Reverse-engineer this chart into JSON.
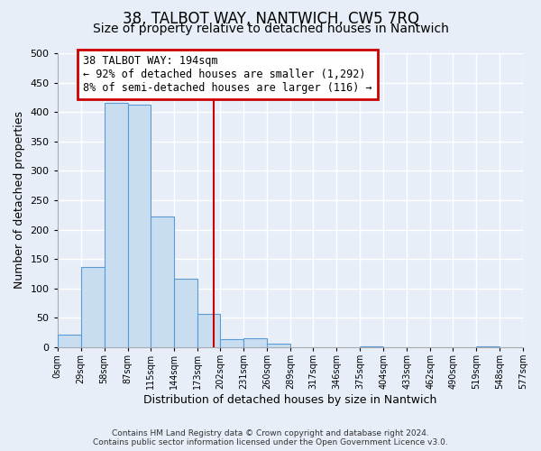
{
  "title": "38, TALBOT WAY, NANTWICH, CW5 7RQ",
  "subtitle": "Size of property relative to detached houses in Nantwich",
  "xlabel": "Distribution of detached houses by size in Nantwich",
  "ylabel": "Number of detached properties",
  "bin_edges": [
    0,
    29,
    58,
    87,
    115,
    144,
    173,
    202,
    231,
    260,
    289,
    317,
    346,
    375,
    404,
    433,
    462,
    490,
    519,
    548,
    577
  ],
  "bin_counts": [
    22,
    137,
    415,
    413,
    222,
    116,
    57,
    14,
    15,
    6,
    0,
    0,
    0,
    2,
    0,
    0,
    0,
    0,
    1,
    0
  ],
  "bar_color": "#c8ddf0",
  "bar_edge_color": "#5b9bd5",
  "property_line_x": 194,
  "annotation_title": "38 TALBOT WAY: 194sqm",
  "annotation_line1": "← 92% of detached houses are smaller (1,292)",
  "annotation_line2": "8% of semi-detached houses are larger (116) →",
  "annotation_box_color": "#ffffff",
  "annotation_box_edge_color": "#cc0000",
  "vline_color": "#cc0000",
  "ylim": [
    0,
    500
  ],
  "xlim": [
    0,
    577
  ],
  "tick_labels": [
    "0sqm",
    "29sqm",
    "58sqm",
    "87sqm",
    "115sqm",
    "144sqm",
    "173sqm",
    "202sqm",
    "231sqm",
    "260sqm",
    "289sqm",
    "317sqm",
    "346sqm",
    "375sqm",
    "404sqm",
    "433sqm",
    "462sqm",
    "490sqm",
    "519sqm",
    "548sqm",
    "577sqm"
  ],
  "footer_line1": "Contains HM Land Registry data © Crown copyright and database right 2024.",
  "footer_line2": "Contains public sector information licensed under the Open Government Licence v3.0.",
  "background_color": "#e8eef8",
  "grid_color": "#ffffff",
  "title_fontsize": 12,
  "subtitle_fontsize": 10,
  "ylabel_fontsize": 9,
  "xlabel_fontsize": 9
}
